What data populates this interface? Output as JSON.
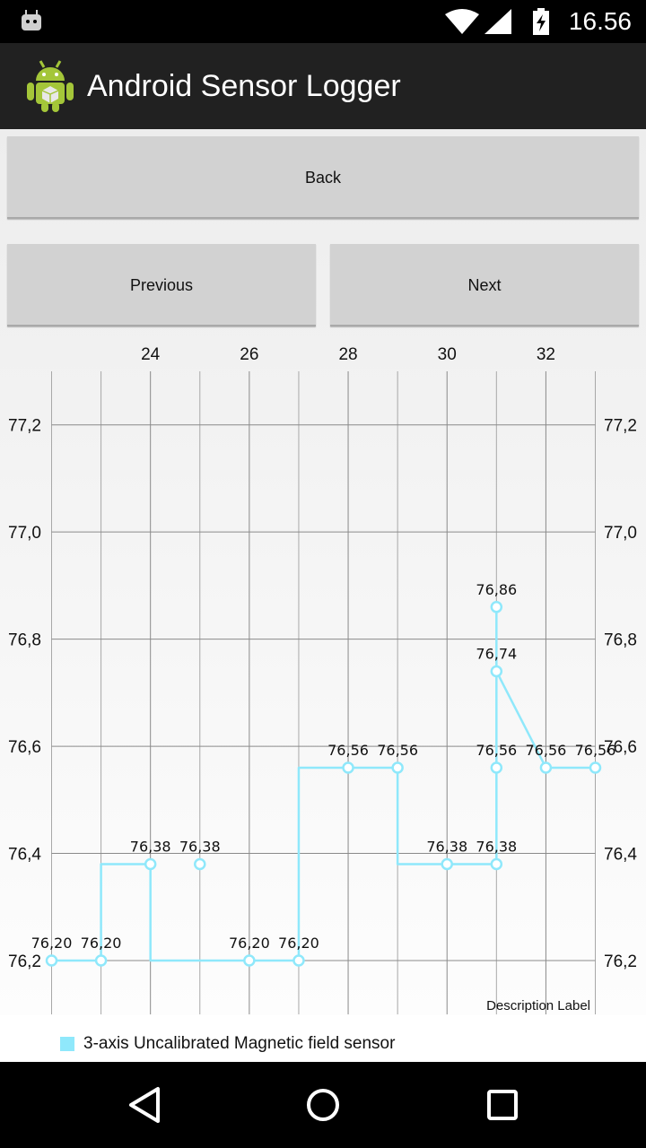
{
  "status_bar": {
    "time": "16.56"
  },
  "app_bar": {
    "title": "Android Sensor Logger"
  },
  "buttons": {
    "back": "Back",
    "previous": "Previous",
    "next": "Next"
  },
  "colors": {
    "series": "#8fe8fb",
    "grid": "#a8a8a8",
    "axis_text": "#111111"
  },
  "icons": {
    "status": [
      "android-notification-icon",
      "wifi-icon",
      "cell-signal-icon",
      "battery-charging-icon"
    ],
    "app": "android-robot-icon",
    "nav": [
      "back-triangle-icon",
      "home-circle-icon",
      "recents-square-icon"
    ]
  },
  "chart_data": {
    "type": "line",
    "x": [
      22,
      23,
      24,
      25,
      26,
      27,
      28,
      29,
      30,
      31,
      31,
      31,
      31,
      32,
      33
    ],
    "series": [
      {
        "name": "3-axis Uncalibrated Magnetic field sensor",
        "values": [
          76.2,
          76.2,
          76.38,
          76.38,
          76.2,
          76.2,
          76.56,
          76.56,
          76.38,
          76.38,
          76.56,
          76.86,
          76.74,
          76.56,
          76.56
        ],
        "path_x": [
          22,
          23,
          23,
          24,
          24,
          25,
          26,
          27,
          27,
          28,
          29,
          29,
          30,
          31,
          31,
          31,
          31,
          32,
          33
        ],
        "path_y": [
          76.2,
          76.2,
          76.38,
          76.38,
          76.2,
          76.2,
          76.2,
          76.2,
          76.56,
          76.56,
          76.56,
          76.38,
          76.38,
          76.38,
          76.56,
          76.86,
          76.74,
          76.56,
          76.56
        ]
      }
    ],
    "x_ticks": [
      "24",
      "26",
      "28",
      "30",
      "32"
    ],
    "x_tick_values": [
      24,
      26,
      28,
      30,
      32
    ],
    "y_ticks": [
      "77,2",
      "77,0",
      "76,8",
      "76,6",
      "76,4",
      "76,2"
    ],
    "y_tick_values": [
      77.2,
      77.0,
      76.8,
      76.6,
      76.4,
      76.2
    ],
    "point_labels": [
      "76,20",
      "76,20",
      "76,38",
      "76,38",
      "76,20",
      "76,20",
      "76,56",
      "76,56",
      "76,38",
      "76,38",
      "76,56",
      "76,86",
      "76,74",
      "76,56",
      "76,56"
    ],
    "description": "Description Label",
    "xlim": [
      22,
      33
    ],
    "ylim": [
      76.2,
      77.3
    ],
    "grid": true,
    "legend": "bottom-left"
  }
}
